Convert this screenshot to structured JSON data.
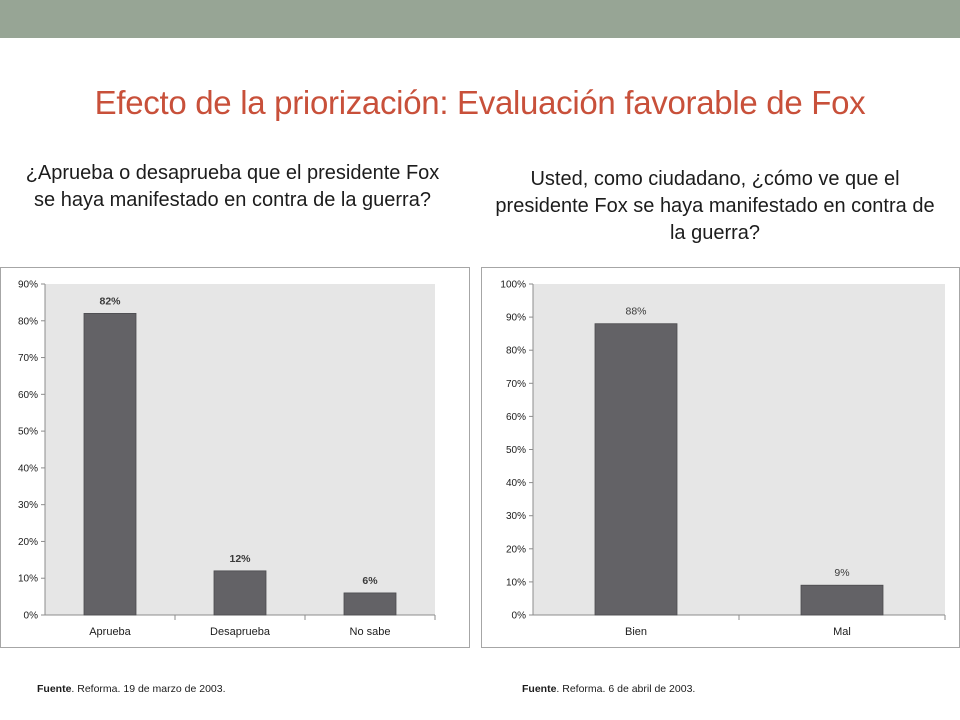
{
  "title": "Efecto de la priorización: Evaluación favorable de Fox",
  "question_left": "¿Aprueba o desaprueba que el presidente Fox se haya manifestado en contra de la guerra?",
  "question_right": "Usted, como ciudadano, ¿cómo ve que el presidente Fox se haya manifestado en contra de la guerra?",
  "source_left": {
    "label": "Fuente",
    "text": ". Reforma.  19 de marzo de 2003."
  },
  "source_right": {
    "label": "Fuente",
    "text": ". Reforma.  6 de abril de 2003."
  },
  "colors": {
    "bar": "#636266",
    "plot_bg": "#e6e6e6",
    "title": "#c8503a",
    "topbar": "#97a595"
  },
  "chart_data": [
    {
      "type": "bar",
      "categories": [
        "Aprueba",
        "Desaprueba",
        "No sabe"
      ],
      "values": [
        82,
        12,
        6
      ],
      "value_labels": [
        "82%",
        "12%",
        "6%"
      ],
      "ylim": [
        0,
        90
      ],
      "yticks": [
        "0%",
        "10%",
        "20%",
        "30%",
        "40%",
        "50%",
        "60%",
        "70%",
        "80%",
        "90%"
      ],
      "grid": false
    },
    {
      "type": "bar",
      "categories": [
        "Bien",
        "Mal"
      ],
      "values": [
        88,
        9
      ],
      "value_labels": [
        "88%",
        "9%"
      ],
      "ylim": [
        0,
        100
      ],
      "yticks": [
        "0%",
        "10%",
        "20%",
        "30%",
        "40%",
        "50%",
        "60%",
        "70%",
        "80%",
        "90%",
        "100%"
      ],
      "grid": false
    }
  ]
}
